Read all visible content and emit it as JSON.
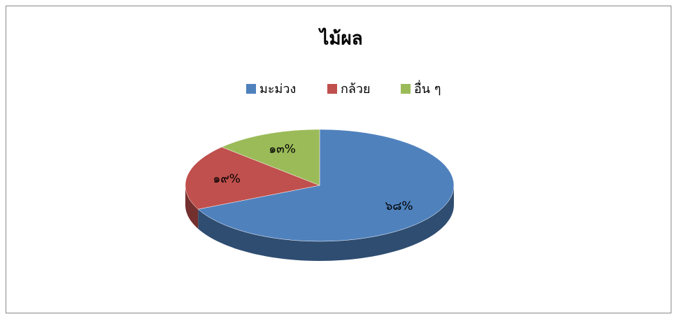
{
  "chart_data": {
    "type": "pie",
    "title": "ไม้ผล",
    "categories": [
      "มะม่วง",
      "กล้วย",
      "อื่น ๆ"
    ],
    "values": [
      68,
      19,
      13
    ],
    "value_labels": [
      "๖๘%",
      "๑๙%",
      "๑๓%"
    ],
    "colors": [
      "#4f81bd",
      "#c0504d",
      "#9bbb59"
    ],
    "legend": "top"
  }
}
